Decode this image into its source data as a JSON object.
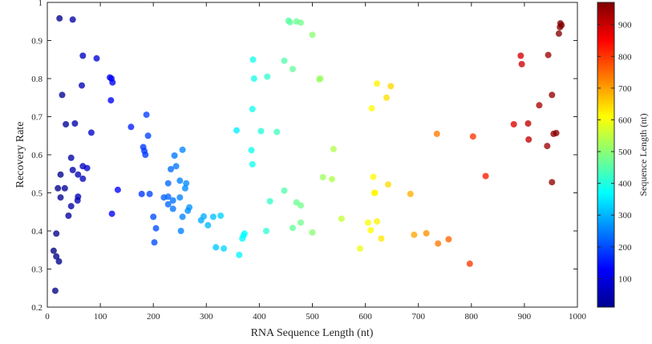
{
  "chart_data": {
    "type": "scatter",
    "title": "",
    "xlabel": "RNA Sequence Length (nt)",
    "ylabel": "Recovery Rate",
    "xlim": [
      0,
      1000
    ],
    "ylim": [
      0.2,
      1.0
    ],
    "xticks": [
      0,
      100,
      200,
      300,
      400,
      500,
      600,
      700,
      800,
      900,
      1000
    ],
    "yticks": [
      0.2,
      0.3,
      0.4,
      0.5,
      0.6,
      0.7,
      0.8,
      0.9,
      1.0
    ],
    "x_tick_labels": [
      "0",
      "100",
      "200",
      "300",
      "400",
      "500",
      "600",
      "700",
      "800",
      "900",
      "1000"
    ],
    "y_tick_labels": [
      "0.2",
      "0.3",
      "0.4",
      "0.5",
      "0.6",
      "0.7",
      "0.8",
      "0.9",
      "1"
    ],
    "colorbar": {
      "label": "Sequence Length (nt)",
      "colormap": "jet",
      "range": [
        10,
        970
      ],
      "ticks": [
        100,
        200,
        300,
        400,
        500,
        600,
        700,
        800,
        900
      ],
      "tick_labels": [
        "100",
        "200",
        "300",
        "400",
        "500",
        "600",
        "700",
        "800",
        "900"
      ]
    },
    "points": [
      [
        23,
        0.958
      ],
      [
        48,
        0.955
      ],
      [
        67,
        0.86
      ],
      [
        93,
        0.853
      ],
      [
        28,
        0.757
      ],
      [
        65,
        0.782
      ],
      [
        35,
        0.68
      ],
      [
        52,
        0.682
      ],
      [
        83,
        0.658
      ],
      [
        45,
        0.592
      ],
      [
        25,
        0.548
      ],
      [
        48,
        0.56
      ],
      [
        58,
        0.548
      ],
      [
        67,
        0.57
      ],
      [
        75,
        0.565
      ],
      [
        67,
        0.537
      ],
      [
        20,
        0.512
      ],
      [
        33,
        0.512
      ],
      [
        25,
        0.488
      ],
      [
        57,
        0.48
      ],
      [
        58,
        0.49
      ],
      [
        45,
        0.465
      ],
      [
        40,
        0.44
      ],
      [
        17,
        0.393
      ],
      [
        12,
        0.348
      ],
      [
        17,
        0.333
      ],
      [
        22,
        0.32
      ],
      [
        15,
        0.243
      ],
      [
        118,
        0.803
      ],
      [
        121,
        0.8
      ],
      [
        123,
        0.79
      ],
      [
        120,
        0.743
      ],
      [
        122,
        0.445
      ],
      [
        133,
        0.508
      ],
      [
        158,
        0.673
      ],
      [
        187,
        0.705
      ],
      [
        190,
        0.65
      ],
      [
        181,
        0.62
      ],
      [
        183,
        0.61
      ],
      [
        185,
        0.6
      ],
      [
        178,
        0.497
      ],
      [
        193,
        0.497
      ],
      [
        200,
        0.437
      ],
      [
        205,
        0.407
      ],
      [
        202,
        0.37
      ],
      [
        240,
        0.598
      ],
      [
        255,
        0.613
      ],
      [
        243,
        0.57
      ],
      [
        233,
        0.562
      ],
      [
        250,
        0.532
      ],
      [
        262,
        0.525
      ],
      [
        228,
        0.525
      ],
      [
        260,
        0.512
      ],
      [
        220,
        0.488
      ],
      [
        228,
        0.49
      ],
      [
        237,
        0.48
      ],
      [
        250,
        0.488
      ],
      [
        228,
        0.47
      ],
      [
        268,
        0.462
      ],
      [
        237,
        0.458
      ],
      [
        265,
        0.453
      ],
      [
        255,
        0.437
      ],
      [
        252,
        0.4
      ],
      [
        290,
        0.428
      ],
      [
        295,
        0.438
      ],
      [
        313,
        0.437
      ],
      [
        327,
        0.44
      ],
      [
        303,
        0.415
      ],
      [
        318,
        0.357
      ],
      [
        333,
        0.354
      ],
      [
        357,
        0.664
      ],
      [
        388,
        0.85
      ],
      [
        390,
        0.8
      ],
      [
        387,
        0.72
      ],
      [
        385,
        0.612
      ],
      [
        387,
        0.575
      ],
      [
        403,
        0.662
      ],
      [
        415,
        0.805
      ],
      [
        433,
        0.66
      ],
      [
        420,
        0.478
      ],
      [
        413,
        0.4
      ],
      [
        362,
        0.337
      ],
      [
        368,
        0.38
      ],
      [
        372,
        0.393
      ],
      [
        370,
        0.388
      ],
      [
        455,
        0.952
      ],
      [
        458,
        0.948
      ],
      [
        470,
        0.95
      ],
      [
        478,
        0.947
      ],
      [
        500,
        0.915
      ],
      [
        447,
        0.847
      ],
      [
        463,
        0.825
      ],
      [
        513,
        0.798
      ],
      [
        515,
        0.8
      ],
      [
        447,
        0.506
      ],
      [
        470,
        0.475
      ],
      [
        478,
        0.467
      ],
      [
        463,
        0.408
      ],
      [
        478,
        0.422
      ],
      [
        500,
        0.396
      ],
      [
        520,
        0.541
      ],
      [
        537,
        0.536
      ],
      [
        540,
        0.615
      ],
      [
        555,
        0.432
      ],
      [
        590,
        0.354
      ],
      [
        605,
        0.422
      ],
      [
        610,
        0.402
      ],
      [
        612,
        0.722
      ],
      [
        622,
        0.787
      ],
      [
        640,
        0.75
      ],
      [
        648,
        0.78
      ],
      [
        615,
        0.542
      ],
      [
        617,
        0.5
      ],
      [
        618,
        0.5
      ],
      [
        622,
        0.425
      ],
      [
        630,
        0.38
      ],
      [
        643,
        0.522
      ],
      [
        685,
        0.497
      ],
      [
        692,
        0.39
      ],
      [
        715,
        0.394
      ],
      [
        735,
        0.655
      ],
      [
        737,
        0.367
      ],
      [
        757,
        0.378
      ],
      [
        797,
        0.314
      ],
      [
        803,
        0.648
      ],
      [
        827,
        0.544
      ],
      [
        880,
        0.68
      ],
      [
        893,
        0.86
      ],
      [
        895,
        0.838
      ],
      [
        907,
        0.682
      ],
      [
        908,
        0.64
      ],
      [
        928,
        0.73
      ],
      [
        945,
        0.862
      ],
      [
        943,
        0.623
      ],
      [
        952,
        0.757
      ],
      [
        952,
        0.528
      ],
      [
        955,
        0.655
      ],
      [
        960,
        0.657
      ],
      [
        965,
        0.918
      ],
      [
        967,
        0.935
      ],
      [
        968,
        0.945
      ],
      [
        970,
        0.94
      ]
    ]
  }
}
